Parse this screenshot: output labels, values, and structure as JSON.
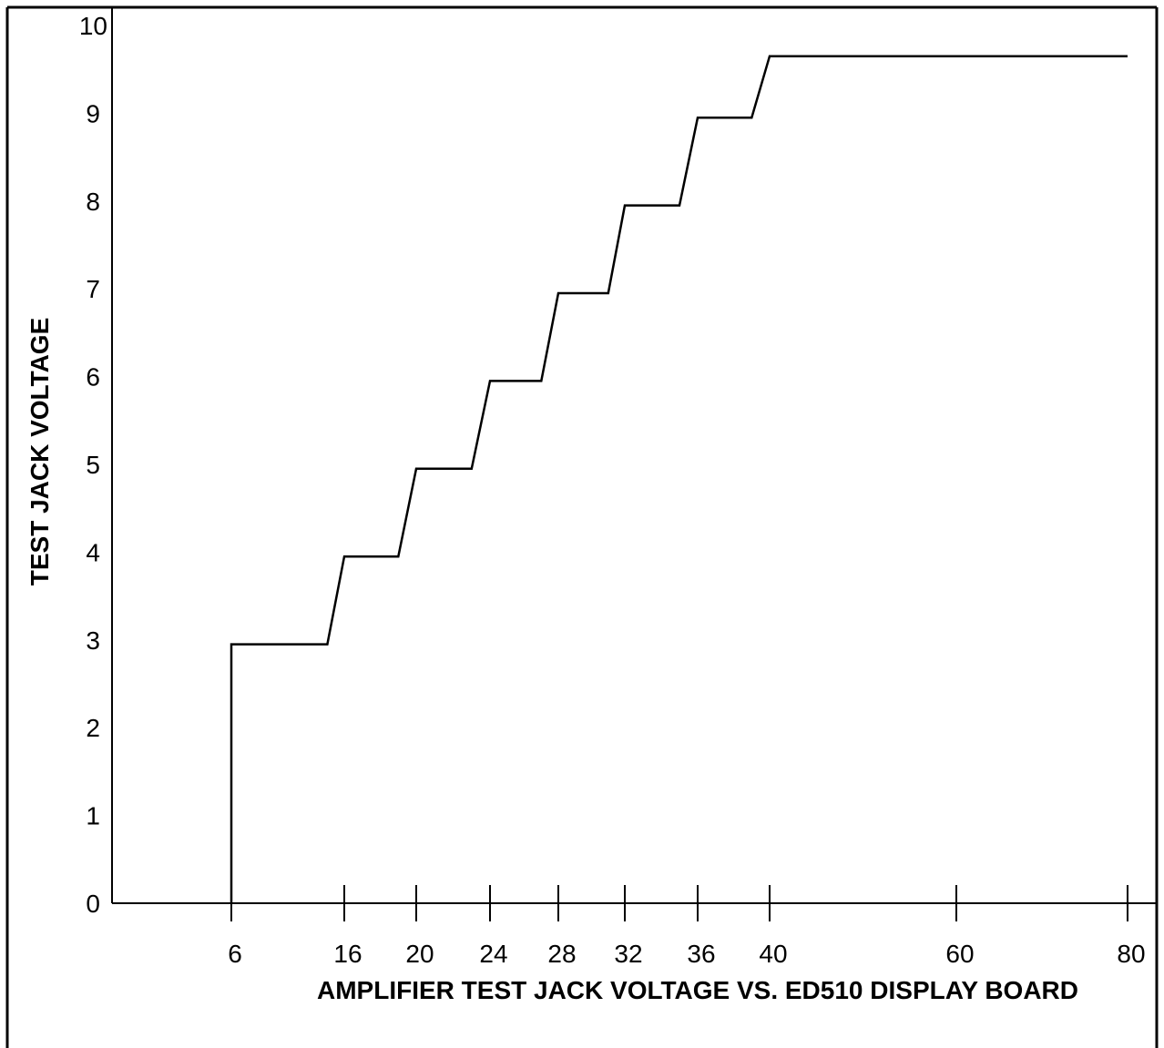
{
  "chart_data": {
    "type": "line",
    "title": "",
    "xlabel": "AMPLIFIER TEST JACK VOLTAGE VS. ED510 DISPLAY BOARD",
    "ylabel": "TEST JACK VOLTAGE",
    "x_tick_labels": [
      "6",
      "16",
      "20",
      "24",
      "28",
      "32",
      "36",
      "40",
      "60",
      "80"
    ],
    "y_tick_labels": [
      "0",
      "1",
      "2",
      "3",
      "4",
      "5",
      "6",
      "7",
      "8",
      "9",
      "10"
    ],
    "ylim": [
      0,
      10
    ],
    "grid": false,
    "legend": "none",
    "series": [
      {
        "points": [
          {
            "x": "6",
            "y": 0
          },
          {
            "x": "6",
            "y": 2.95
          },
          {
            "x": "14.5",
            "y": 2.95
          },
          {
            "x": "16",
            "y": 3.95
          },
          {
            "x": "19",
            "y": 3.95
          },
          {
            "x": "20",
            "y": 4.95
          },
          {
            "x": "23",
            "y": 4.95
          },
          {
            "x": "24",
            "y": 5.95
          },
          {
            "x": "27",
            "y": 5.95
          },
          {
            "x": "28",
            "y": 6.95
          },
          {
            "x": "31",
            "y": 6.95
          },
          {
            "x": "32",
            "y": 7.95
          },
          {
            "x": "35",
            "y": 7.95
          },
          {
            "x": "36",
            "y": 8.95
          },
          {
            "x": "39",
            "y": 8.95
          },
          {
            "x": "40",
            "y": 9.65
          },
          {
            "x": "80",
            "y": 9.65
          }
        ]
      }
    ],
    "colors": {
      "line": "#000000",
      "axis": "#000000",
      "background": "#ffffff"
    }
  }
}
